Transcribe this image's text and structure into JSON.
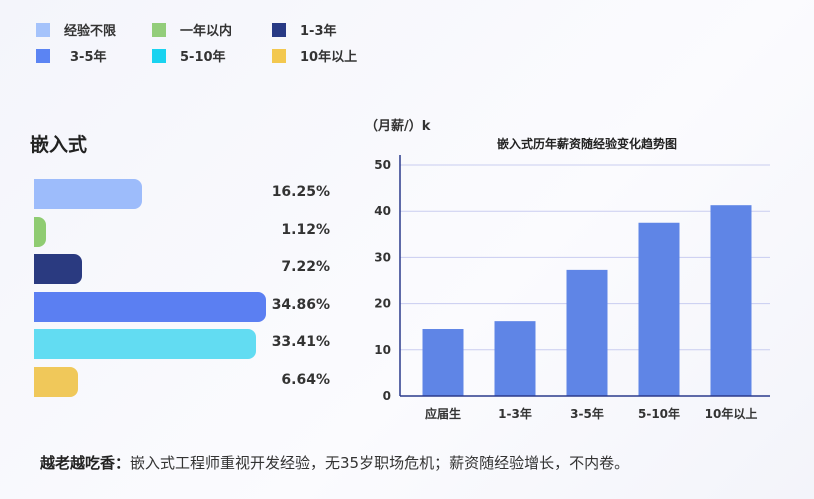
{
  "legend": [
    {
      "label": "经验不限",
      "color": "#a5c3fb"
    },
    {
      "label": "一年以内",
      "color": "#93cd7a"
    },
    {
      "label": "1-3年",
      "color": "#283a85"
    },
    {
      "label": "3-5年",
      "color": "#5b84f3"
    },
    {
      "label": "5-10年",
      "color": "#19d3f0"
    },
    {
      "label": "10年以上",
      "color": "#f3c84f"
    }
  ],
  "left_title": "嵌入式",
  "footer": {
    "bold": "越老越吃香：",
    "text": "嵌入式工程师重视开发经验，无35岁职场危机；薪资随经验增长，不内卷。"
  },
  "chart_data": [
    {
      "type": "bar",
      "orientation": "horizontal",
      "categories": [
        "经验不限",
        "一年以内",
        "1-3年",
        "3-5年",
        "5-10年",
        "10年以上"
      ],
      "values": [
        16.25,
        1.12,
        7.22,
        34.86,
        33.41,
        6.64
      ],
      "value_labels": [
        "16.25%",
        "1.12%",
        "7.22%",
        "34.86%",
        "33.41%",
        "6.64%"
      ],
      "colors": [
        "#9dbcfb",
        "#8fcc72",
        "#2a3a80",
        "#5b7ff2",
        "#62dcf2",
        "#f0c85a"
      ]
    },
    {
      "type": "bar",
      "title": "嵌入式历年薪资随经验变化趋势图",
      "ylabel": "（月薪/）k",
      "categories": [
        "应届生",
        "1-3年",
        "3-5年",
        "5-10年",
        "10年以上"
      ],
      "values": [
        14.5,
        16.2,
        27.3,
        37.5,
        41.3
      ],
      "yticks": [
        0,
        10,
        20,
        30,
        40,
        50
      ],
      "ylim": [
        0,
        50
      ],
      "grid": true,
      "color": "#5f85e6"
    }
  ]
}
